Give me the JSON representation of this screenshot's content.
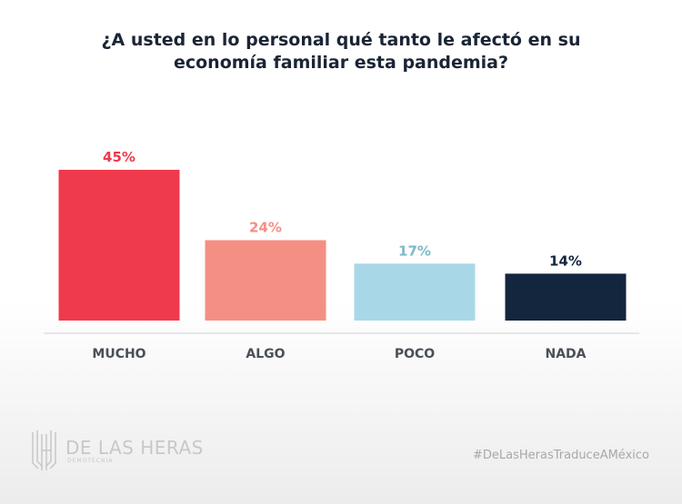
{
  "title": {
    "line1": "¿A usted en lo personal qué tanto le afectó en su",
    "line2": "economía familiar esta pandemia?"
  },
  "chart_data": {
    "type": "bar",
    "categories": [
      "MUCHO",
      "ALGO",
      "POCO",
      "NADA"
    ],
    "values": [
      45,
      24,
      17,
      14
    ],
    "value_labels": [
      "45%",
      "24%",
      "17%",
      "14%"
    ],
    "colors": [
      "#ee3a4c",
      "#f48f84",
      "#a8d8e7",
      "#14263d"
    ],
    "label_colors": [
      "#ee3a4c",
      "#f48f84",
      "#7fb8c8",
      "#14263d"
    ],
    "ylim": [
      0,
      45
    ],
    "grid": false
  },
  "footer": {
    "logo_name": "DE LAS HERAS",
    "logo_sub": "DEMOTECNIA",
    "hashtag": "#DeLasHerasTraduceAMéxico"
  }
}
